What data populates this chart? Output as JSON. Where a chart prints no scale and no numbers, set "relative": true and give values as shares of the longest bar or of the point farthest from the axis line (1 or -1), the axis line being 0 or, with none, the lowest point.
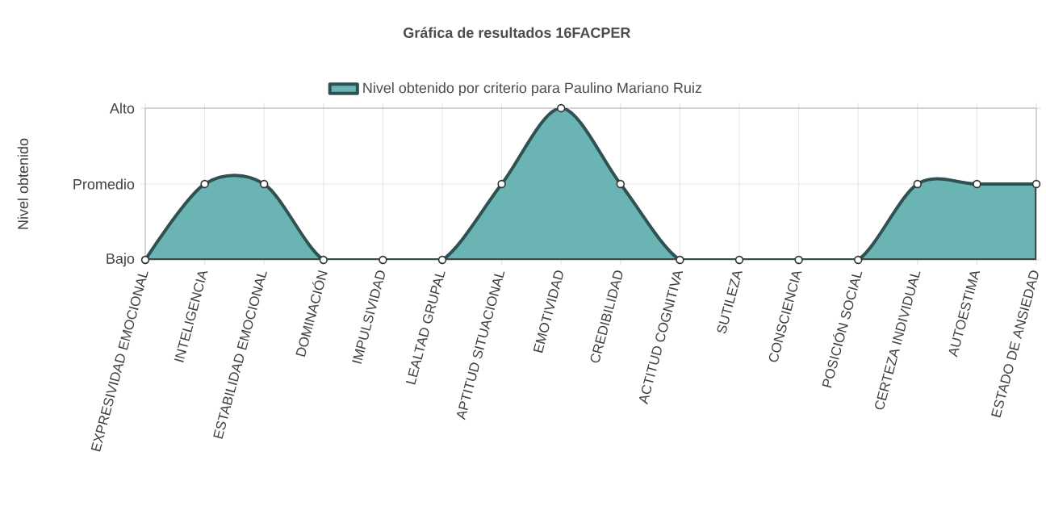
{
  "chart_data": {
    "type": "area",
    "title": "Gráfica de resultados 16FACPER",
    "ylabel": "Nivel obtenido",
    "categories": [
      "EXPRESIVIDAD EMOCIONAL",
      "INTELIGENCIA",
      "ESTABILIDAD EMOCIONAL",
      "DOMINACIÓN",
      "IMPULSIVIDAD",
      "LEALTAD GRUPAL",
      "APTITUD SITUACIONAL",
      "EMOTIVIDAD",
      "CREDIBILIDAD",
      "ACTITUD COGNITIVA",
      "SUTILEZA",
      "CONSCIENCIA",
      "POSICIÓN SOCIAL",
      "CERTEZA INDIVIDUAL",
      "AUTOESTIMA",
      "ESTADO DE ANSIEDAD"
    ],
    "series": [
      {
        "name": "Nivel obtenido por criterio para Paulino Mariano Ruiz",
        "color": "#6bb4b4",
        "values": [
          0,
          0.5,
          0.5,
          0,
          0,
          0,
          0.5,
          1,
          0.5,
          0,
          0,
          0,
          0,
          0.5,
          0.5,
          0.5
        ]
      }
    ],
    "relative": true,
    "annotations": [
      "Bajo",
      "Promedio",
      "Alto"
    ],
    "grid": true,
    "legend": "top",
    "marker": "circle"
  }
}
